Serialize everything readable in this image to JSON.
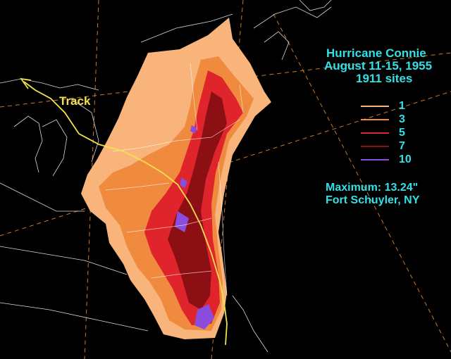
{
  "title": {
    "name": "Hurricane Connie",
    "dates": "August 11-15, 1955",
    "sites": "1911 sites"
  },
  "legend": [
    {
      "label": "1",
      "color": "#f8b47a"
    },
    {
      "label": "3",
      "color": "#f08a3e"
    },
    {
      "label": "5",
      "color": "#e0242c"
    },
    {
      "label": "7",
      "color": "#8c0f14"
    },
    {
      "label": "10",
      "color": "#8a4cdc"
    }
  ],
  "maximum": {
    "line1": "Maximum:  13.24\"",
    "line2": "Fort Schuyler, NY"
  },
  "track_label": "Track",
  "colors": {
    "background": "#000000",
    "text": "#33e0e6",
    "track": "#f2e24a",
    "boundaries": "#ffffff",
    "gridlines": "#c8782a"
  }
}
